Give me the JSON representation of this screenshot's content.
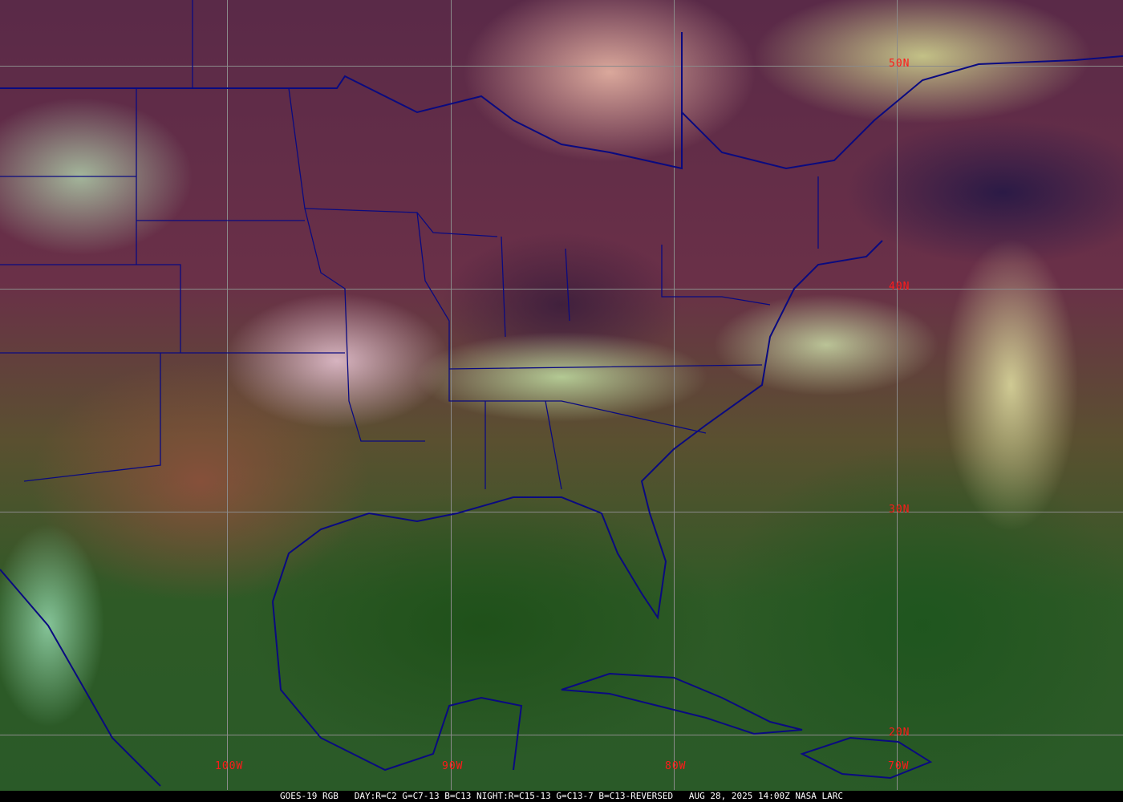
{
  "image": {
    "type": "satellite-rgb-composite",
    "colors": {
      "border_lines": "#0a0a80",
      "grid_lines": "#8a8a8a",
      "grid_labels": "#ff1a1a",
      "caption_bg": "#000000",
      "caption_text": "#ffffff"
    }
  },
  "grid_labels": {
    "lat": [
      "50N",
      "40N",
      "30N",
      "20N"
    ],
    "lon": [
      "100W",
      "90W",
      "80W",
      "70W"
    ]
  },
  "caption": "GOES-19 RGB   DAY:R=C2 G=C7-13 B=C13 NIGHT:R=C15-13 G=C13-7 B=C13-REVERSED   AUG 28, 2025 14:00Z NASA LARC"
}
